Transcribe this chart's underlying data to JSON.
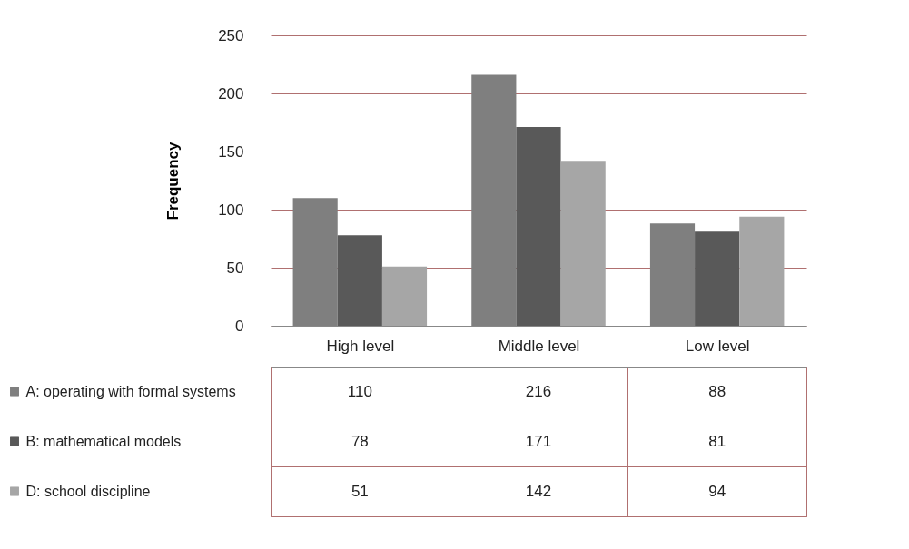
{
  "chart_data": {
    "type": "bar",
    "ylabel": "Frequency",
    "categories": [
      "High level",
      "Middle level",
      "Low level"
    ],
    "series": [
      {
        "name": "A: operating with formal systems",
        "color": "#7f7f7f",
        "values": [
          110,
          216,
          88
        ]
      },
      {
        "name": "B: mathematical models",
        "color": "#595959",
        "values": [
          78,
          171,
          81
        ]
      },
      {
        "name": "D: school discipline",
        "color": "#a6a6a6",
        "values": [
          51,
          142,
          94
        ]
      }
    ],
    "ylim": [
      0,
      250
    ],
    "yticks": [
      0,
      50,
      100,
      150,
      200,
      250
    ],
    "grid": "y",
    "data_labels": true,
    "legend": "bottom"
  }
}
